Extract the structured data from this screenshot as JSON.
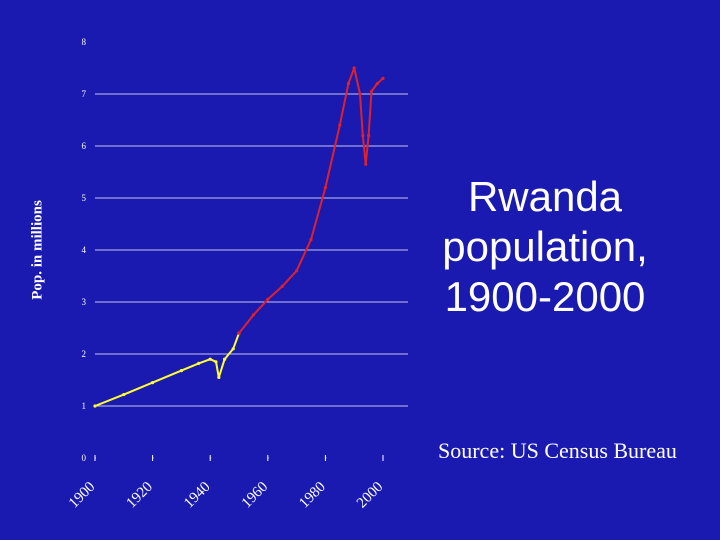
{
  "slide": {
    "title_lines": [
      "Rwanda",
      "population,",
      "1900-2000"
    ],
    "source": "Source: US Census Bureau",
    "background": "#1a1ab0"
  },
  "chart_data": {
    "type": "line",
    "title": "Rwanda population, 1900-2000",
    "xlabel": "",
    "ylabel": "Pop. in millions",
    "xlim": [
      1900,
      2000
    ],
    "ylim": [
      0,
      8
    ],
    "x_ticks": [
      "1900",
      "1920",
      "1940",
      "1960",
      "1980",
      "2000"
    ],
    "y_ticks": [
      "0",
      "1",
      "2",
      "3",
      "4",
      "5",
      "6",
      "7",
      "8"
    ],
    "grid": true,
    "series": [
      {
        "color": "#ffff33",
        "x": [
          1900,
          1910,
          1920,
          1930,
          1936,
          1940,
          1942,
          1943,
          1945,
          1948,
          1950
        ],
        "y": [
          1.0,
          1.22,
          1.45,
          1.68,
          1.82,
          1.9,
          1.85,
          1.55,
          1.9,
          2.1,
          2.4
        ]
      },
      {
        "color": "#e0202a",
        "x": [
          1950,
          1955,
          1960,
          1965,
          1970,
          1975,
          1980,
          1985,
          1988,
          1990,
          1992,
          1993,
          1994,
          1995,
          1996,
          1998,
          2000
        ],
        "y": [
          2.4,
          2.75,
          3.05,
          3.3,
          3.6,
          4.2,
          5.2,
          6.4,
          7.2,
          7.5,
          7.0,
          6.2,
          5.65,
          6.2,
          7.05,
          7.2,
          7.3
        ]
      }
    ]
  }
}
